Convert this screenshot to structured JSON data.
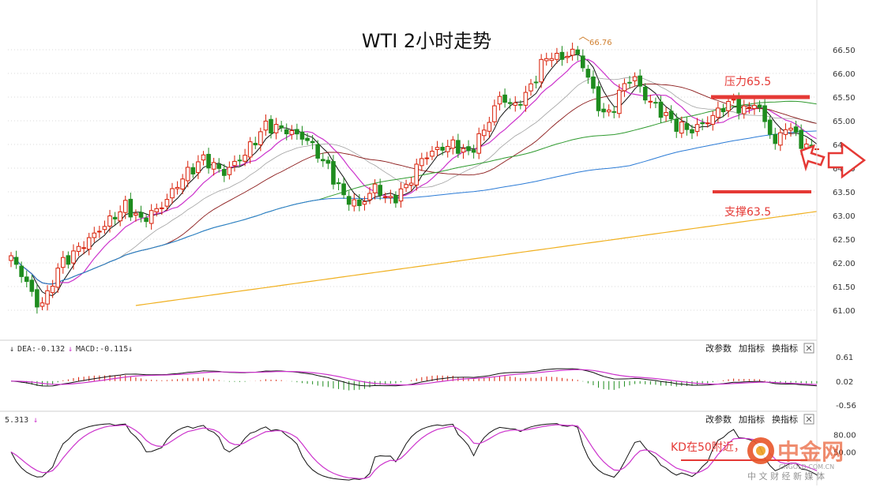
{
  "chart_data": {
    "type": "candlestick",
    "title": "WTI 2小时走势",
    "main": {
      "ylim": [
        60.75,
        66.75
      ],
      "y_ticks": [
        "66.50",
        "66.00",
        "65.50",
        "65.00",
        "64.",
        "64.00",
        "63.50",
        "63.00",
        "62.50",
        "62.00",
        "61.50",
        "61.00"
      ],
      "peak_label": "66.76",
      "resistance": {
        "label": "压力65.5",
        "value": 65.5
      },
      "support": {
        "label": "支撑63.5",
        "value": 63.5
      },
      "waypoints": [
        [
          0,
          62.1
        ],
        [
          3,
          61.6
        ],
        [
          5,
          61.1
        ],
        [
          7,
          61.3
        ],
        [
          9,
          61.9
        ],
        [
          12,
          62.2
        ],
        [
          16,
          62.6
        ],
        [
          19,
          62.9
        ],
        [
          22,
          63.2
        ],
        [
          25,
          62.9
        ],
        [
          29,
          63.2
        ],
        [
          33,
          63.8
        ],
        [
          37,
          64.2
        ],
        [
          41,
          63.9
        ],
        [
          45,
          64.3
        ],
        [
          49,
          64.9
        ],
        [
          53,
          64.8
        ],
        [
          57,
          64.6
        ],
        [
          61,
          64.0
        ],
        [
          64,
          63.4
        ],
        [
          67,
          63.2
        ],
        [
          70,
          63.6
        ],
        [
          73,
          63.3
        ],
        [
          76,
          63.6
        ],
        [
          79,
          64.2
        ],
        [
          82,
          64.4
        ],
        [
          85,
          64.5
        ],
        [
          88,
          64.3
        ],
        [
          91,
          64.8
        ],
        [
          94,
          65.5
        ],
        [
          97,
          65.3
        ],
        [
          100,
          65.7
        ],
        [
          102,
          66.2
        ],
        [
          104,
          66.4
        ],
        [
          106,
          66.3
        ],
        [
          108,
          66.5
        ],
        [
          110,
          66.2
        ],
        [
          112,
          65.6
        ],
        [
          114,
          65.1
        ],
        [
          116,
          65.3
        ],
        [
          118,
          65.8
        ],
        [
          120,
          65.9
        ],
        [
          122,
          65.5
        ],
        [
          125,
          65.2
        ],
        [
          128,
          64.9
        ],
        [
          131,
          64.8
        ],
        [
          134,
          65.0
        ],
        [
          137,
          65.3
        ],
        [
          139,
          65.4
        ],
        [
          141,
          65.2
        ],
        [
          143,
          65.4
        ],
        [
          145,
          65.0
        ],
        [
          147,
          64.5
        ],
        [
          149,
          64.9
        ],
        [
          151,
          64.7
        ],
        [
          153,
          64.4
        ],
        [
          155,
          64.5
        ]
      ]
    },
    "macd": {
      "dea_label": "DEA:-0.132",
      "macd_label": "MACD:-0.115",
      "y_ticks": [
        "0.61",
        "0.02",
        "-0.56"
      ],
      "ylim": [
        -0.56,
        0.61
      ],
      "links": [
        "改参数",
        "加指标",
        "换指标"
      ]
    },
    "kd": {
      "value_label": "5.313",
      "y_ticks": [
        "80.00",
        "50.00"
      ],
      "ylim": [
        0,
        100
      ],
      "annotation": "KD在50附近，",
      "links": [
        "改参数",
        "加指标",
        "换指标"
      ]
    }
  },
  "watermark": {
    "name": "中金网",
    "domain": "CNGOLD.COM.CN",
    "tagline": "中 文 财 经 新 媒 体"
  },
  "colors": {
    "up": "#d81e06",
    "down": "#1e8c1e",
    "ma5": "#111111",
    "ma10": "#cc33cc",
    "ma20": "#a0a0a0",
    "ma30": "#8b1a1a",
    "ma60": "#2e9a2e",
    "ma120": "#2b7bd6",
    "ma250": "#f0b020",
    "level": "#e53935",
    "arrow": "#e53935",
    "grid": "#d8d8d8"
  }
}
